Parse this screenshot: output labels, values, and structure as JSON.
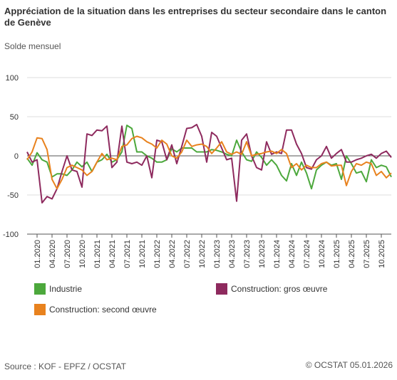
{
  "chart_data": {
    "type": "line",
    "title": "Appréciation de la situation dans les entreprises du secteur secondaire dans le canton de Genève",
    "subtitle": "Solde mensuel",
    "source": "Source : KOF - EPFZ / OCSTAT",
    "copyright": "© OCSTAT 05.01.2026",
    "categories": [
      null,
      null,
      "01.2020",
      null,
      null,
      "04.2020",
      null,
      null,
      "07.2020",
      null,
      null,
      "10.2020",
      null,
      null,
      "01.2021",
      null,
      null,
      "04.2021",
      null,
      null,
      "07.2021",
      null,
      null,
      "10.2021",
      null,
      null,
      "01.2022",
      null,
      null,
      "04.2022",
      null,
      null,
      "07.2022",
      null,
      null,
      "10.2022",
      null,
      null,
      "01.2023",
      null,
      null,
      "04.2023",
      null,
      null,
      "07.2023",
      null,
      null,
      "10.2023",
      null,
      null,
      "01.2024",
      null,
      null,
      "04.2024",
      null,
      null,
      "07.2024",
      null,
      null,
      "10.2024",
      null,
      null,
      "01.2025",
      null,
      null,
      "04.2025",
      null,
      null,
      "07.2025",
      null,
      null,
      "10.2025",
      null,
      null
    ],
    "series": [
      {
        "name": "Industrie",
        "color": "#4ca83c",
        "values": [
          -3,
          -12,
          4,
          -5,
          -8,
          -27,
          -23,
          -23,
          -25,
          -18,
          -8,
          -14,
          -8,
          -20,
          -8,
          -5,
          2,
          -8,
          -5,
          5,
          39,
          35,
          5,
          5,
          0,
          -3,
          -8,
          -8,
          -5,
          9,
          5,
          10,
          10,
          10,
          5,
          5,
          5,
          8,
          7,
          5,
          2,
          0,
          20,
          5,
          -5,
          -7,
          5,
          -2,
          -12,
          -5,
          -12,
          -25,
          -32,
          -10,
          -25,
          -8,
          -22,
          -42,
          -18,
          -12,
          -8,
          -12,
          -10,
          -30,
          0,
          -10,
          -22,
          -20,
          -33,
          -5,
          -15,
          -12,
          -14,
          -27
        ]
      },
      {
        "name": "Construction: gros œuvre",
        "color": "#8e2a5e",
        "values": [
          5,
          -8,
          -5,
          -60,
          -52,
          -55,
          -42,
          -20,
          0,
          -18,
          -20,
          -40,
          28,
          26,
          33,
          32,
          38,
          -15,
          -8,
          38,
          -8,
          -10,
          -8,
          -12,
          0,
          -28,
          20,
          18,
          -5,
          14,
          -10,
          12,
          35,
          36,
          40,
          25,
          -8,
          30,
          25,
          10,
          -5,
          -3,
          -58,
          20,
          28,
          0,
          -15,
          -18,
          18,
          2,
          5,
          3,
          33,
          33,
          15,
          3,
          -15,
          -17,
          -5,
          0,
          12,
          -3,
          3,
          8,
          -8,
          -8,
          -5,
          -3,
          0,
          2,
          -3,
          3,
          6,
          -2
        ]
      },
      {
        "name": "Construction: second œuvre",
        "color": "#e8821e",
        "values": [
          -5,
          5,
          23,
          22,
          8,
          -30,
          -42,
          -30,
          -15,
          -12,
          -15,
          -18,
          -25,
          -20,
          -8,
          3,
          -5,
          -3,
          -5,
          12,
          14,
          22,
          25,
          23,
          18,
          15,
          10,
          20,
          15,
          0,
          -3,
          5,
          20,
          12,
          14,
          15,
          12,
          3,
          10,
          18,
          5,
          2,
          5,
          2,
          18,
          0,
          2,
          3,
          5,
          6,
          3,
          8,
          3,
          -15,
          -10,
          -18,
          -12,
          -15,
          -15,
          -10,
          -8,
          -13,
          -12,
          -12,
          -38,
          -20,
          -10,
          -12,
          -8,
          -10,
          -25,
          -20,
          -28,
          -22
        ]
      }
    ],
    "ylim": [
      -100,
      100
    ],
    "yticks": [
      -100,
      -50,
      0,
      50,
      100
    ],
    "grid": true
  }
}
